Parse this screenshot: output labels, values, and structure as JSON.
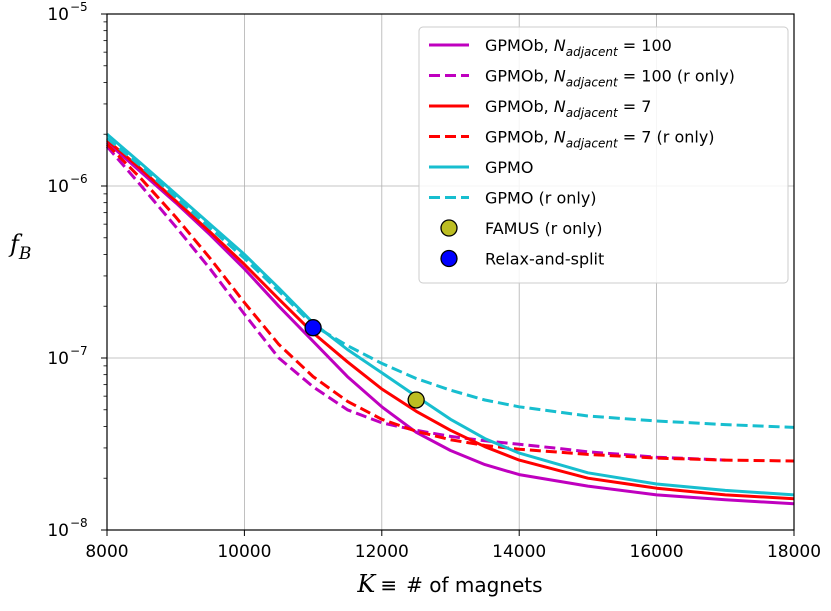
{
  "chart_data": {
    "type": "line",
    "xlabel_symbol": "K",
    "xlabel_equiv": "≡",
    "xlabel_text": "# of magnets",
    "ylabel_main": "f",
    "ylabel_sub": "B",
    "xscale": "linear",
    "yscale": "log",
    "xlim": [
      8000,
      18000
    ],
    "ylim": [
      1e-08,
      1e-05
    ],
    "grid": true,
    "legend_position": "top-right",
    "x_ticks": [
      "8000",
      "10000",
      "12000",
      "14000",
      "16000",
      "18000"
    ],
    "x_tick_values": [
      8000,
      10000,
      12000,
      14000,
      16000,
      18000
    ],
    "y_ticks": [
      {
        "base": "10",
        "exp": "−8",
        "value": 1e-08
      },
      {
        "base": "10",
        "exp": "−7",
        "value": 1e-07
      },
      {
        "base": "10",
        "exp": "−6",
        "value": 1e-06
      },
      {
        "base": "10",
        "exp": "−5",
        "value": 1e-05
      }
    ],
    "series": [
      {
        "name": "GPMOb, N_adjacent = 100",
        "label_pre": "GPMOb, ",
        "label_N": "N",
        "label_sub": "adjacent",
        "label_post": " = 100",
        "color": "#bf00bf",
        "dash": "solid",
        "x": [
          8000,
          8500,
          9000,
          9500,
          10000,
          10500,
          11000,
          11500,
          12000,
          12500,
          13000,
          13500,
          14000,
          15000,
          16000,
          17000,
          18000
        ],
        "y": [
          1.8e-06,
          1.2e-06,
          8e-07,
          5.2e-07,
          3.3e-07,
          2e-07,
          1.25e-07,
          7.8e-08,
          5.2e-08,
          3.7e-08,
          2.9e-08,
          2.4e-08,
          2.1e-08,
          1.8e-08,
          1.6e-08,
          1.5e-08,
          1.42e-08
        ]
      },
      {
        "name": "GPMOb, N_adjacent = 100 (r only)",
        "label_pre": "GPMOb, ",
        "label_N": "N",
        "label_sub": "adjacent",
        "label_post": " = 100 (r only)",
        "color": "#bf00bf",
        "dash": "dashed",
        "x": [
          8000,
          8500,
          9000,
          9500,
          10000,
          10500,
          11000,
          11500,
          12000,
          12500,
          13000,
          13500,
          14000,
          14500,
          15000,
          15500,
          16000,
          16500,
          17000
        ],
        "y": [
          1.7e-06,
          1e-06,
          5.8e-07,
          3.3e-07,
          1.8e-07,
          1e-07,
          6.8e-08,
          5e-08,
          4.2e-08,
          3.8e-08,
          3.5e-08,
          3.3e-08,
          3.15e-08,
          3e-08,
          2.85e-08,
          2.75e-08,
          2.65e-08,
          2.6e-08,
          2.55e-08
        ]
      },
      {
        "name": "GPMOb, N_adjacent = 7",
        "label_pre": "GPMOb, ",
        "label_N": "N",
        "label_sub": "adjacent",
        "label_post": " = 7",
        "color": "#ff0000",
        "dash": "solid",
        "x": [
          8000,
          8500,
          9000,
          9500,
          10000,
          10500,
          11000,
          11500,
          12000,
          12500,
          13000,
          13500,
          14000,
          15000,
          16000,
          17000,
          18000
        ],
        "y": [
          1.85e-06,
          1.25e-06,
          8.2e-07,
          5.4e-07,
          3.5e-07,
          2.2e-07,
          1.4e-07,
          9.5e-08,
          6.6e-08,
          4.9e-08,
          3.8e-08,
          3.05e-08,
          2.55e-08,
          2e-08,
          1.75e-08,
          1.6e-08,
          1.52e-08
        ]
      },
      {
        "name": "GPMOb, N_adjacent = 7 (r only)",
        "label_pre": "GPMOb, ",
        "label_N": "N",
        "label_sub": "adjacent",
        "label_post": " = 7 (r only)",
        "color": "#ff0000",
        "dash": "dashed",
        "x": [
          8000,
          8500,
          9000,
          9500,
          10000,
          10500,
          11000,
          11500,
          12000,
          12500,
          13000,
          13500,
          14000,
          15000,
          16000,
          17000,
          18000
        ],
        "y": [
          1.75e-06,
          1.1e-06,
          6.6e-07,
          3.8e-07,
          2.1e-07,
          1.2e-07,
          7.8e-08,
          5.6e-08,
          4.4e-08,
          3.75e-08,
          3.35e-08,
          3.1e-08,
          2.95e-08,
          2.75e-08,
          2.62e-08,
          2.55e-08,
          2.52e-08
        ]
      },
      {
        "name": "GPMO",
        "label_pre": "GPMO",
        "label_N": "",
        "label_sub": "",
        "label_post": "",
        "color": "#17becf",
        "dash": "solid",
        "x": [
          8000,
          8500,
          9000,
          9500,
          10000,
          10500,
          11000,
          11500,
          12000,
          12500,
          13000,
          13500,
          14000,
          15000,
          16000,
          17000,
          18000
        ],
        "y": [
          2e-06,
          1.35e-06,
          9e-07,
          6e-07,
          4e-07,
          2.55e-07,
          1.6e-07,
          1.12e-07,
          8.2e-08,
          6e-08,
          4.4e-08,
          3.4e-08,
          2.8e-08,
          2.15e-08,
          1.85e-08,
          1.7e-08,
          1.6e-08
        ]
      },
      {
        "name": "GPMO (r only)",
        "label_pre": "GPMO (r only)",
        "label_N": "",
        "label_sub": "",
        "label_post": "",
        "color": "#17becf",
        "dash": "dashed",
        "x": [
          8000,
          8500,
          9000,
          9500,
          10000,
          10500,
          11000,
          11500,
          12000,
          12500,
          13000,
          13500,
          14000,
          15000,
          16000,
          17000,
          18000
        ],
        "y": [
          1.9e-06,
          1.3e-06,
          8.6e-07,
          5.7e-07,
          3.8e-07,
          2.45e-07,
          1.55e-07,
          1.18e-07,
          9.3e-08,
          7.6e-08,
          6.5e-08,
          5.7e-08,
          5.2e-08,
          4.6e-08,
          4.3e-08,
          4.1e-08,
          3.95e-08
        ]
      }
    ],
    "markers": [
      {
        "name": "FAMUS (r only)",
        "color": "#bcbd22",
        "x": 12500,
        "y": 5.7e-08
      },
      {
        "name": "Relax-and-split",
        "color": "#0000ff",
        "x": 11000,
        "y": 1.5e-07
      }
    ]
  }
}
